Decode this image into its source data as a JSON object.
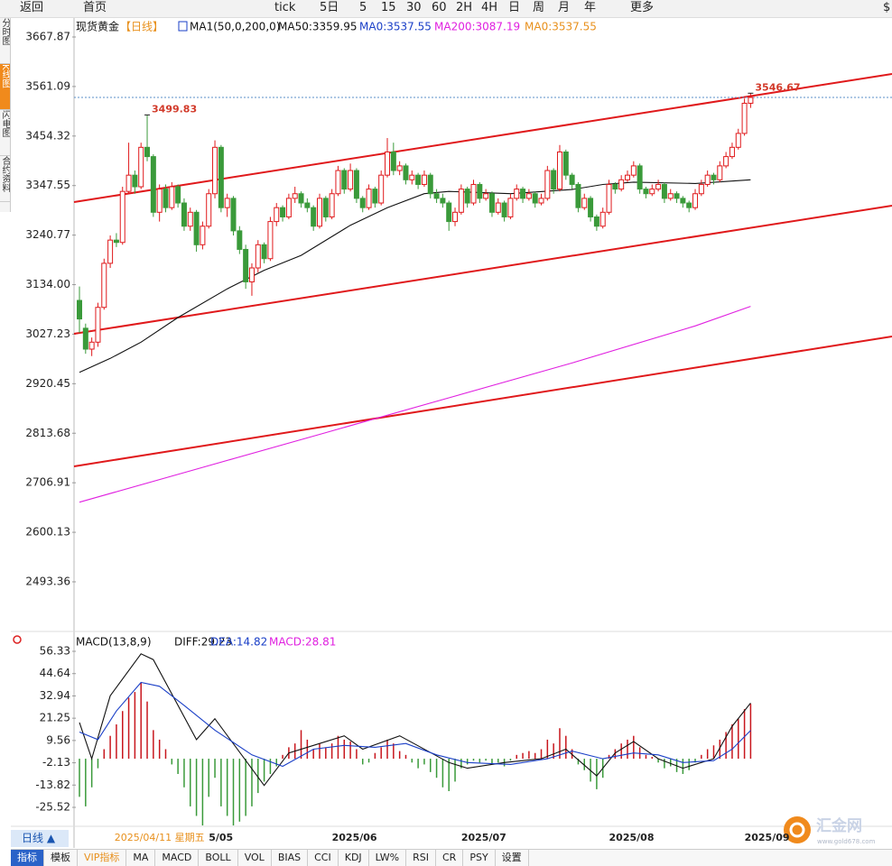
{
  "toolbar": {
    "items": [
      "返回",
      "首页",
      "tick",
      "5日",
      "5",
      "15",
      "30",
      "60",
      "2H",
      "4H",
      "日",
      "周",
      "月",
      "年",
      "更多",
      "$"
    ]
  },
  "sidebar": {
    "tabs": [
      "分时图",
      "K线图",
      "闪电图",
      "合约资料"
    ]
  },
  "chart_data": [
    {
      "type": "candlestick",
      "title": "现货黄金",
      "period": "【日线】",
      "indicator": "MA1(50,0,200,0)",
      "legend": [
        {
          "label": "MA50:3359.95",
          "color": "#111111"
        },
        {
          "label": "MA0:3537.55",
          "color": "#1a3fc7"
        },
        {
          "label": "MA200:3087.19",
          "color": "#e020e0"
        },
        {
          "label": "MA0:3537.55",
          "color": "#e8901c"
        }
      ],
      "up_color": "#e0191b",
      "down_color": "#3a9a3a",
      "xlim": [
        -0.88,
        131.96
      ],
      "ylim": [
        2396.1,
        3704.8
      ],
      "yticks": [
        3667.87,
        3561.09,
        3454.32,
        3347.55,
        3240.77,
        {
          "value": 3134,
          "label": "3134.00"
        },
        3027.23,
        2920.45,
        2813.68,
        2706.91,
        2600.13,
        2493.36
      ],
      "x_labels": [
        {
          "index": 21,
          "label": "5/05"
        },
        {
          "index": 41,
          "label": "2025/06"
        },
        {
          "index": 62,
          "label": "2025/07"
        },
        {
          "index": 86,
          "label": "2025/08"
        },
        {
          "index": 108,
          "label": "2025/09"
        }
      ],
      "cursor_label": {
        "index": 13,
        "label": "2025/04/11 星期五"
      },
      "candles": [
        [
          3100,
          3130,
          3030,
          3060
        ],
        [
          3040,
          3050,
          2985,
          2995
        ],
        [
          2995,
          3020,
          2980,
          3010
        ],
        [
          3010,
          3095,
          3000,
          3085
        ],
        [
          3085,
          3190,
          3080,
          3180
        ],
        [
          3180,
          3240,
          3170,
          3230
        ],
        [
          3230,
          3245,
          3215,
          3225
        ],
        [
          3225,
          3345,
          3220,
          3335
        ],
        [
          3335,
          3440,
          3330,
          3370
        ],
        [
          3370,
          3380,
          3330,
          3345
        ],
        [
          3345,
          3440,
          3340,
          3430
        ],
        [
          3430,
          3499.83,
          3400,
          3410
        ],
        [
          3410,
          3415,
          3280,
          3290
        ],
        [
          3290,
          3350,
          3270,
          3340
        ],
        [
          3340,
          3350,
          3290,
          3300
        ],
        [
          3300,
          3355,
          3295,
          3345
        ],
        [
          3345,
          3350,
          3300,
          3310
        ],
        [
          3310,
          3320,
          3250,
          3260
        ],
        [
          3260,
          3300,
          3250,
          3290
        ],
        [
          3290,
          3295,
          3205,
          3220
        ],
        [
          3220,
          3270,
          3210,
          3260
        ],
        [
          3260,
          3340,
          3255,
          3330
        ],
        [
          3330,
          3445,
          3320,
          3430
        ],
        [
          3430,
          3435,
          3290,
          3300
        ],
        [
          3300,
          3330,
          3280,
          3320
        ],
        [
          3320,
          3325,
          3240,
          3250
        ],
        [
          3250,
          3260,
          3200,
          3210
        ],
        [
          3210,
          3220,
          3125,
          3140
        ],
        [
          3140,
          3180,
          3110,
          3170
        ],
        [
          3170,
          3230,
          3160,
          3220
        ],
        [
          3220,
          3225,
          3180,
          3190
        ],
        [
          3190,
          3280,
          3185,
          3270
        ],
        [
          3270,
          3310,
          3260,
          3300
        ],
        [
          3300,
          3305,
          3270,
          3280
        ],
        [
          3280,
          3330,
          3275,
          3320
        ],
        [
          3320,
          3345,
          3310,
          3330
        ],
        [
          3330,
          3335,
          3300,
          3310
        ],
        [
          3310,
          3320,
          3290,
          3300
        ],
        [
          3300,
          3305,
          3250,
          3260
        ],
        [
          3260,
          3330,
          3255,
          3320
        ],
        [
          3320,
          3325,
          3270,
          3280
        ],
        [
          3280,
          3340,
          3275,
          3330
        ],
        [
          3330,
          3390,
          3325,
          3380
        ],
        [
          3380,
          3385,
          3330,
          3340
        ],
        [
          3340,
          3395,
          3335,
          3380
        ],
        [
          3380,
          3385,
          3310,
          3320
        ],
        [
          3320,
          3325,
          3290,
          3300
        ],
        [
          3300,
          3350,
          3295,
          3340
        ],
        [
          3340,
          3345,
          3300,
          3310
        ],
        [
          3310,
          3380,
          3305,
          3370
        ],
        [
          3370,
          3450,
          3365,
          3420
        ],
        [
          3420,
          3440,
          3370,
          3380
        ],
        [
          3380,
          3400,
          3370,
          3390
        ],
        [
          3390,
          3395,
          3350,
          3360
        ],
        [
          3360,
          3380,
          3350,
          3370
        ],
        [
          3370,
          3375,
          3340,
          3350
        ],
        [
          3350,
          3380,
          3345,
          3370
        ],
        [
          3370,
          3375,
          3320,
          3330
        ],
        [
          3330,
          3340,
          3310,
          3320
        ],
        [
          3320,
          3330,
          3300,
          3310
        ],
        [
          3310,
          3315,
          3250,
          3270
        ],
        [
          3270,
          3300,
          3260,
          3290
        ],
        [
          3290,
          3350,
          3285,
          3340
        ],
        [
          3340,
          3345,
          3300,
          3310
        ],
        [
          3310,
          3360,
          3305,
          3350
        ],
        [
          3350,
          3355,
          3310,
          3320
        ],
        [
          3320,
          3340,
          3315,
          3330
        ],
        [
          3330,
          3335,
          3280,
          3290
        ],
        [
          3290,
          3320,
          3285,
          3310
        ],
        [
          3310,
          3315,
          3270,
          3280
        ],
        [
          3280,
          3330,
          3275,
          3320
        ],
        [
          3320,
          3350,
          3315,
          3340
        ],
        [
          3340,
          3345,
          3310,
          3320
        ],
        [
          3320,
          3340,
          3315,
          3330
        ],
        [
          3330,
          3335,
          3300,
          3310
        ],
        [
          3310,
          3330,
          3305,
          3320
        ],
        [
          3320,
          3390,
          3315,
          3380
        ],
        [
          3380,
          3385,
          3330,
          3340
        ],
        [
          3340,
          3435,
          3335,
          3420
        ],
        [
          3420,
          3425,
          3360,
          3370
        ],
        [
          3370,
          3375,
          3340,
          3350
        ],
        [
          3350,
          3355,
          3290,
          3300
        ],
        [
          3300,
          3330,
          3295,
          3320
        ],
        [
          3320,
          3325,
          3270,
          3280
        ],
        [
          3280,
          3285,
          3250,
          3260
        ],
        [
          3260,
          3300,
          3255,
          3290
        ],
        [
          3290,
          3360,
          3285,
          3350
        ],
        [
          3350,
          3355,
          3330,
          3340
        ],
        [
          3340,
          3370,
          3335,
          3360
        ],
        [
          3360,
          3380,
          3355,
          3370
        ],
        [
          3370,
          3400,
          3365,
          3390
        ],
        [
          3390,
          3395,
          3330,
          3340
        ],
        [
          3340,
          3345,
          3320,
          3330
        ],
        [
          3330,
          3350,
          3325,
          3340
        ],
        [
          3340,
          3360,
          3335,
          3350
        ],
        [
          3350,
          3355,
          3310,
          3320
        ],
        [
          3320,
          3340,
          3315,
          3330
        ],
        [
          3330,
          3335,
          3310,
          3320
        ],
        [
          3320,
          3325,
          3300,
          3310
        ],
        [
          3310,
          3315,
          3290,
          3300
        ],
        [
          3300,
          3340,
          3295,
          3330
        ],
        [
          3330,
          3360,
          3325,
          3350
        ],
        [
          3350,
          3380,
          3345,
          3370
        ],
        [
          3370,
          3375,
          3350,
          3360
        ],
        [
          3360,
          3400,
          3355,
          3390
        ],
        [
          3390,
          3420,
          3385,
          3410
        ],
        [
          3410,
          3440,
          3405,
          3430
        ],
        [
          3430,
          3470,
          3425,
          3460
        ],
        [
          3460,
          3535,
          3455,
          3525
        ],
        [
          3525,
          3546.67,
          3515,
          3537.55
        ]
      ],
      "series": [
        {
          "color": "#111111",
          "x": [
            0,
            5,
            10,
            16,
            24,
            30,
            36,
            44,
            50,
            56,
            60,
            70,
            80,
            85,
            90,
            100,
            109
          ],
          "values": [
            2945,
            2975,
            3010,
            3063,
            3125,
            3165,
            3197,
            3262,
            3300,
            3330,
            3335,
            3330,
            3339,
            3350,
            3355,
            3352,
            3359.95
          ]
        },
        {
          "color": "#e020e0",
          "x": [
            0,
            20,
            40,
            60,
            80,
            100,
            109
          ],
          "values": [
            2665,
            2740,
            2815,
            2890,
            2965,
            3045,
            3087.19
          ]
        }
      ],
      "trendlines": [
        {
          "color": "#e0191b",
          "start": [
            -0.88,
            3312
          ],
          "end": [
            131.96,
            3588.1
          ]
        },
        {
          "color": "#e0191b",
          "start": [
            -0.88,
            3028.1
          ],
          "end": [
            131.96,
            3304.2
          ]
        },
        {
          "color": "#e0191b",
          "start": [
            -0.88,
            2742.3
          ],
          "end": [
            131.96,
            3022.3
          ]
        }
      ],
      "annotations": [
        {
          "index": 11,
          "value": 3499.83,
          "label": "3499.83"
        },
        {
          "index": 109,
          "value": 3546.67,
          "label": "3546.67"
        }
      ],
      "last_price": 3537.55
    },
    {
      "type": "macd",
      "title": "MACD(13,8,9)",
      "legend": [
        {
          "label": "DIFF:29.23",
          "color": "#111111"
        },
        {
          "label": "DEA:14.82",
          "color": "#1a3fc7"
        },
        {
          "label": "MACD:28.81",
          "color": "#e020e0"
        }
      ],
      "xlim": [
        -0.88,
        131.96
      ],
      "ylim": [
        -34.98,
        64.38
      ],
      "yticks": [
        56.33,
        44.64,
        32.94,
        21.25,
        9.56,
        -2.13,
        -13.82,
        -25.52
      ],
      "up_color": "#c8161d",
      "down_color": "#3a9a3a",
      "histogram": [
        -20,
        -25,
        -15,
        -5,
        5,
        12,
        18,
        25,
        32,
        35,
        40,
        30,
        15,
        10,
        5,
        -3,
        -8,
        -15,
        -25,
        -30,
        -35,
        -20,
        -10,
        -25,
        -30,
        -35,
        -33,
        -30,
        -25,
        -18,
        -12,
        -8,
        -4,
        2,
        6,
        8,
        15,
        10,
        5,
        8,
        6,
        8,
        12,
        10,
        9,
        5,
        -3,
        -2,
        3,
        6,
        10,
        8,
        4,
        2,
        -2,
        -5,
        -3,
        -7,
        -10,
        -15,
        -17,
        -12,
        -5,
        -3,
        -1,
        -2,
        -1,
        -3,
        -2,
        -4,
        -1,
        2,
        3,
        4,
        3,
        5,
        10,
        8,
        16,
        12,
        5,
        -3,
        -6,
        -12,
        -16,
        -10,
        2,
        5,
        8,
        10,
        12,
        6,
        2,
        1,
        -2,
        -5,
        -4,
        -7,
        -8,
        -6,
        -2,
        2,
        5,
        7,
        10,
        14,
        18,
        21,
        26,
        28.81
      ],
      "series": [
        {
          "color": "#111111",
          "x": [
            0,
            2,
            5,
            10,
            12,
            19,
            22,
            30,
            34,
            38,
            43,
            46,
            52,
            60,
            63,
            69,
            75,
            79,
            84,
            87,
            90,
            94,
            98,
            103,
            106,
            109
          ],
          "values": [
            19,
            0,
            33,
            55,
            52,
            10,
            21,
            -14,
            3,
            7,
            12,
            5,
            12,
            -2,
            -5,
            -2,
            0,
            5,
            -9,
            3,
            9,
            0,
            -5,
            0,
            17,
            29.23
          ]
        },
        {
          "color": "#1a3fc7",
          "x": [
            0,
            3,
            6,
            10,
            13,
            17,
            22,
            28,
            33,
            38,
            43,
            48,
            53,
            58,
            63,
            70,
            76,
            80,
            85,
            90,
            94,
            98,
            103,
            106,
            109
          ],
          "values": [
            14,
            10,
            25,
            40,
            38,
            28,
            15,
            2,
            -4,
            5,
            7,
            6,
            8,
            2,
            -2,
            -3,
            0,
            4,
            0,
            3,
            2,
            -2,
            -1,
            5,
            14.82
          ]
        }
      ]
    }
  ],
  "footer": {
    "period": "日线 ▲",
    "tabs": [
      "指标",
      "模板",
      "VIP指标",
      "MA",
      "MACD",
      "BOLL",
      "VOL",
      "BIAS",
      "CCI",
      "KDJ",
      "LW%",
      "RSI",
      "CR",
      "PSY",
      "设置"
    ]
  },
  "logo": {
    "name": "汇金网",
    "url": "www.gold678.com"
  }
}
